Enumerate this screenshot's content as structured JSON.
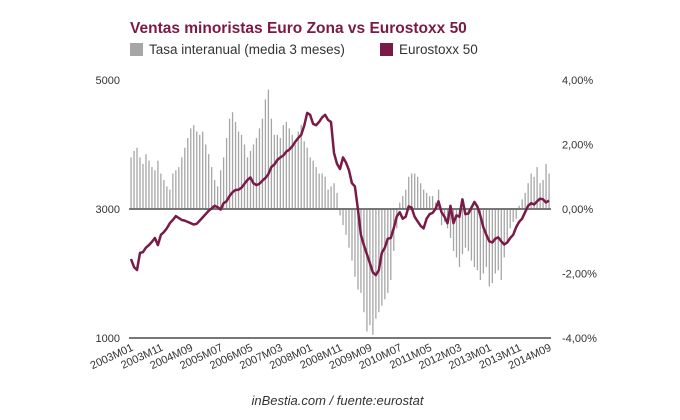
{
  "chart_data": {
    "type": "bar+line",
    "title": "Ventas minoristas Euro Zona vs Eurostoxx 50",
    "source": "inBestia.com / fuente:eurostat",
    "colors": {
      "bars": "#a6a6a6",
      "line": "#7a1a47",
      "title": "#7a1a47",
      "axis": "#777777"
    },
    "legend": {
      "placement": "top-left",
      "entries": [
        {
          "name": "Tasa interanual (media 3 meses)",
          "color": "#a6a6a6"
        },
        {
          "name": "Eurostoxx 50",
          "color": "#7a1a47"
        }
      ]
    },
    "y_left": {
      "label": "",
      "range": [
        1000,
        5000
      ],
      "ticks": [
        "5000",
        "3000",
        "1000"
      ],
      "tick_values": [
        5000,
        3000,
        1000
      ]
    },
    "y_right": {
      "label": "",
      "range": [
        -4,
        4
      ],
      "ticks": [
        "4,00%",
        "2,00%",
        "0,00%",
        "-2,00%",
        "-4,00%"
      ],
      "tick_values": [
        4,
        2,
        0,
        -2,
        -4
      ]
    },
    "x_ticks": [
      "2003M01",
      "2003M11",
      "2004M09",
      "2005M07",
      "2006M05",
      "2007M03",
      "2008M01",
      "2008M11",
      "2009M09",
      "2010M07",
      "2011M05",
      "2012M03",
      "2013M01",
      "2013M11",
      "2014M09"
    ],
    "x_tick_index": [
      0,
      10,
      20,
      30,
      40,
      50,
      60,
      70,
      80,
      90,
      100,
      110,
      120,
      130,
      140
    ],
    "x_start": "2003M01",
    "x_end": "2014M09",
    "series": [
      {
        "name": "Tasa interanual (media 3 meses)",
        "type": "bar",
        "axis": "right",
        "unit": "%",
        "values": [
          1.6,
          1.8,
          1.9,
          1.6,
          1.4,
          1.7,
          1.5,
          1.3,
          1.2,
          1.5,
          1.1,
          0.9,
          0.7,
          0.6,
          1.1,
          1.2,
          1.3,
          1.6,
          1.9,
          2.2,
          2.5,
          2.6,
          2.4,
          2.3,
          2.4,
          2.0,
          1.7,
          1.3,
          0.9,
          0.7,
          1.2,
          1.6,
          2.2,
          2.8,
          3.0,
          2.7,
          2.4,
          2.3,
          2.0,
          1.6,
          1.8,
          2.0,
          2.2,
          2.5,
          2.8,
          3.4,
          3.7,
          2.8,
          2.3,
          2.3,
          2.2,
          2.6,
          2.7,
          2.5,
          2.3,
          2.0,
          2.4,
          2.6,
          2.1,
          1.9,
          1.6,
          1.5,
          1.3,
          1.1,
          1.1,
          1.0,
          0.6,
          0.7,
          0.8,
          0.5,
          -0.2,
          -0.5,
          -0.8,
          -1.2,
          -1.6,
          -2.1,
          -2.5,
          -2.6,
          -3.2,
          -3.8,
          -3.6,
          -3.9,
          -3.4,
          -3.2,
          -3.0,
          -2.8,
          -2.6,
          -2.2,
          -1.3,
          -0.6,
          0.2,
          0.4,
          0.6,
          1.0,
          1.1,
          1.1,
          1.0,
          0.8,
          0.6,
          0.5,
          0.4,
          0.4,
          0.2,
          0.6,
          -0.5,
          -0.4,
          -0.6,
          -0.9,
          -1.3,
          -1.5,
          -1.8,
          -1.4,
          -1.2,
          -1.3,
          -1.6,
          -1.8,
          -1.9,
          -2.2,
          -2.0,
          -1.8,
          -2.4,
          -2.3,
          -2.0,
          -1.9,
          -2.2,
          -1.5,
          -1.0,
          -0.6,
          -0.4,
          -0.3,
          0.1,
          0.3,
          0.5,
          0.8,
          1.1,
          1.0,
          1.3,
          0.8,
          0.9,
          1.4,
          1.1
        ],
        "_": ""
      },
      {
        "name": "Eurostoxx 50",
        "type": "line",
        "axis": "left",
        "unit": "points",
        "values": [
          2225,
          2100,
          2055,
          2320,
          2330,
          2400,
          2440,
          2490,
          2550,
          2440,
          2600,
          2640,
          2700,
          2780,
          2830,
          2890,
          2860,
          2830,
          2820,
          2800,
          2780,
          2760,
          2770,
          2820,
          2870,
          2920,
          2970,
          3010,
          3050,
          3030,
          2990,
          3090,
          3120,
          3200,
          3260,
          3295,
          3300,
          3330,
          3390,
          3450,
          3490,
          3400,
          3370,
          3390,
          3440,
          3480,
          3540,
          3650,
          3690,
          3760,
          3800,
          3830,
          3890,
          3920,
          3970,
          4040,
          4100,
          4150,
          4290,
          4490,
          4460,
          4320,
          4300,
          4350,
          4420,
          4460,
          4380,
          4350,
          3870,
          3700,
          3620,
          3800,
          3720,
          3600,
          3400,
          3350,
          3000,
          2600,
          2440,
          2300,
          2160,
          2020,
          1975,
          2050,
          2320,
          2400,
          2540,
          2550,
          2700,
          2880,
          2950,
          2850,
          2880,
          3040,
          3020,
          2880,
          2810,
          2740,
          2700,
          2850,
          2920,
          2940,
          3000,
          3120,
          2950,
          2880,
          2780,
          3050,
          2780,
          2900,
          2880,
          3150,
          2920,
          2930,
          3020,
          3110,
          3040,
          2900,
          2720,
          2600,
          2500,
          2480,
          2540,
          2560,
          2500,
          2450,
          2480,
          2550,
          2600,
          2720,
          2800,
          2850,
          2950,
          3050,
          3090,
          3070,
          3120,
          3160,
          3150,
          3100,
          3130
        ]
      }
    ]
  }
}
